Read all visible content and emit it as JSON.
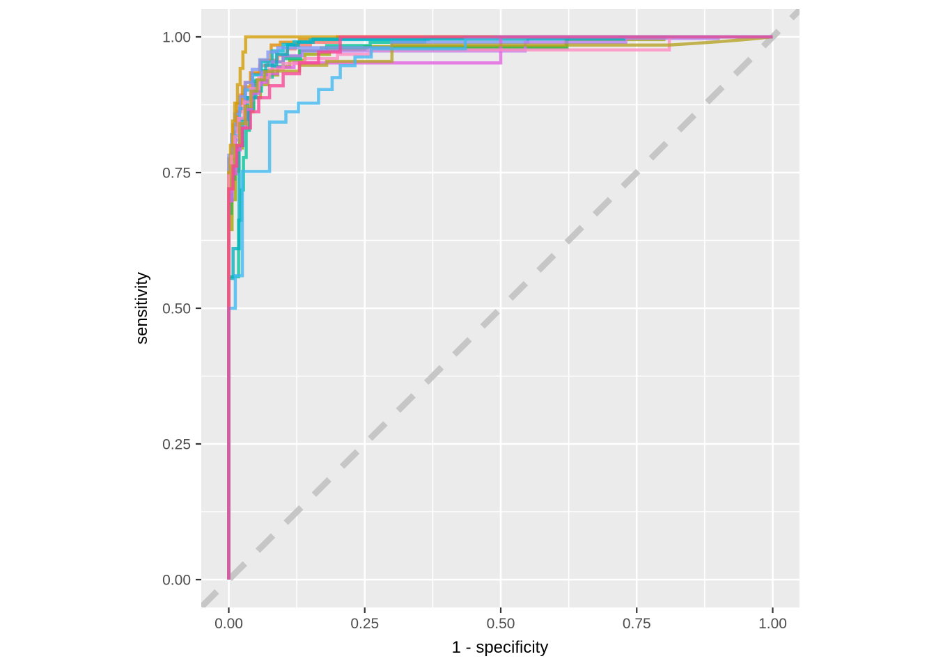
{
  "chart_data": {
    "type": "line",
    "subtype": "roc-step-curves",
    "title": "",
    "xlabel": "1 - specificity",
    "ylabel": "sensitivity",
    "xlim": [
      -0.05,
      1.05
    ],
    "ylim": [
      -0.05,
      1.05
    ],
    "grid": {
      "background": "#EBEBEB",
      "major_color": "#FFFFFF",
      "minor_color": "#FFFFFF"
    },
    "legend_position": "none",
    "x_ticks": {
      "values": [
        0,
        0.25,
        0.5,
        0.75,
        1.0
      ],
      "labels": [
        "0.00",
        "0.25",
        "0.50",
        "0.75",
        "1.00"
      ]
    },
    "y_ticks": {
      "values": [
        0,
        0.25,
        0.5,
        0.75,
        1.0
      ],
      "labels": [
        "0.00",
        "0.25",
        "0.50",
        "0.75",
        "1.00"
      ]
    },
    "x_minor_ticks": [
      0.125,
      0.375,
      0.625,
      0.875
    ],
    "y_minor_ticks": [
      0.125,
      0.375,
      0.625,
      0.875
    ],
    "reference_line": {
      "name": "chance-diagonal",
      "style": "dashed",
      "color": "#C6C6C6",
      "width": 9,
      "dash": [
        31,
        26
      ],
      "from": [
        -0.05,
        -0.05
      ],
      "to": [
        1.05,
        1.05
      ]
    },
    "series": [
      {
        "name": "roc-curve-salmon",
        "color": "#F8766D",
        "points": [
          [
            0,
            0
          ],
          [
            0,
            0.7
          ],
          [
            0.005,
            0.745
          ],
          [
            0.01,
            0.785
          ],
          [
            0.016,
            0.825
          ],
          [
            0.022,
            0.862
          ],
          [
            0.03,
            0.893
          ],
          [
            0.042,
            0.916
          ],
          [
            0.057,
            0.932
          ],
          [
            0.072,
            0.947
          ],
          [
            0.09,
            0.957
          ],
          [
            0.107,
            0.966
          ],
          [
            0.122,
            0.978
          ],
          [
            0.15,
            0.985
          ],
          [
            0.2,
            0.99
          ],
          [
            0.26,
            1
          ],
          [
            1,
            1
          ]
        ]
      },
      {
        "name": "roc-curve-orange",
        "color": "#E08B00",
        "points": [
          [
            0,
            0
          ],
          [
            0,
            0.715
          ],
          [
            0.008,
            0.775
          ],
          [
            0.015,
            0.838
          ],
          [
            0.025,
            0.878
          ],
          [
            0.04,
            0.908
          ],
          [
            0.058,
            0.934
          ],
          [
            0.078,
            0.956
          ],
          [
            0.095,
            0.985
          ],
          [
            0.13,
            0.99
          ],
          [
            0.2,
            0.995
          ],
          [
            0.29,
            1
          ],
          [
            1,
            1
          ]
        ]
      },
      {
        "name": "roc-curve-olive",
        "color": "#9DA700",
        "points": [
          [
            0,
            0
          ],
          [
            0,
            0.58
          ],
          [
            0.006,
            0.645
          ],
          [
            0.012,
            0.7
          ],
          [
            0.018,
            0.752
          ],
          [
            0.025,
            0.795
          ],
          [
            0.034,
            0.832
          ],
          [
            0.045,
            0.862
          ],
          [
            0.058,
            0.888
          ],
          [
            0.072,
            0.912
          ],
          [
            0.09,
            0.93
          ],
          [
            0.112,
            0.945
          ],
          [
            0.14,
            0.957
          ],
          [
            0.185,
            0.968
          ],
          [
            0.25,
            0.977
          ],
          [
            0.45,
            0.982
          ],
          [
            0.62,
            0.982
          ],
          [
            0.62,
            0.995
          ],
          [
            0.8,
            0.995
          ],
          [
            0.8,
            1
          ],
          [
            1,
            1
          ]
        ]
      },
      {
        "name": "roc-curve-green",
        "color": "#2FB84F",
        "points": [
          [
            0,
            0
          ],
          [
            0,
            0.6
          ],
          [
            0.005,
            0.675
          ],
          [
            0.011,
            0.738
          ],
          [
            0.02,
            0.798
          ],
          [
            0.031,
            0.848
          ],
          [
            0.045,
            0.888
          ],
          [
            0.06,
            0.918
          ],
          [
            0.08,
            0.938
          ],
          [
            0.1,
            0.954
          ],
          [
            0.13,
            0.964
          ],
          [
            0.17,
            0.974
          ],
          [
            0.25,
            0.98
          ],
          [
            0.622,
            0.98
          ],
          [
            0.622,
            1
          ],
          [
            1,
            1
          ]
        ]
      },
      {
        "name": "roc-curve-seagreen",
        "color": "#00C29A",
        "points": [
          [
            0,
            0
          ],
          [
            0,
            0.558
          ],
          [
            0.018,
            0.558
          ],
          [
            0.018,
            0.615
          ],
          [
            0.023,
            0.662
          ],
          [
            0.027,
            0.718
          ],
          [
            0.032,
            0.778
          ],
          [
            0.038,
            0.828
          ],
          [
            0.046,
            0.868
          ],
          [
            0.06,
            0.9
          ],
          [
            0.08,
            0.926
          ],
          [
            0.1,
            0.945
          ],
          [
            0.132,
            0.96
          ],
          [
            0.18,
            0.974
          ],
          [
            0.26,
            0.984
          ],
          [
            0.36,
            0.99
          ],
          [
            0.5,
            1
          ],
          [
            1,
            1
          ]
        ]
      },
      {
        "name": "roc-curve-cyan",
        "color": "#00BEE0",
        "points": [
          [
            0,
            0
          ],
          [
            0,
            0.62
          ],
          [
            0.006,
            0.7
          ],
          [
            0.012,
            0.758
          ],
          [
            0.02,
            0.818
          ],
          [
            0.03,
            0.868
          ],
          [
            0.044,
            0.902
          ],
          [
            0.06,
            0.93
          ],
          [
            0.08,
            0.954
          ],
          [
            0.1,
            0.974
          ],
          [
            0.12,
            0.986
          ],
          [
            0.15,
            0.991
          ],
          [
            0.22,
            0.995
          ],
          [
            0.367,
            0.995
          ],
          [
            0.367,
            0.998
          ],
          [
            0.434,
            0.998
          ],
          [
            0.434,
            1
          ],
          [
            1,
            1
          ]
        ]
      },
      {
        "name": "roc-curve-periwinkle",
        "color": "#7F97F5",
        "points": [
          [
            0,
            0
          ],
          [
            0,
            0.74
          ],
          [
            0.005,
            0.782
          ],
          [
            0.011,
            0.82
          ],
          [
            0.02,
            0.858
          ],
          [
            0.031,
            0.89
          ],
          [
            0.043,
            0.916
          ],
          [
            0.057,
            0.94
          ],
          [
            0.072,
            0.958
          ],
          [
            0.09,
            0.972
          ],
          [
            0.12,
            0.98
          ],
          [
            0.3,
            0.98
          ],
          [
            0.3,
            0.99
          ],
          [
            0.55,
            0.99
          ],
          [
            0.55,
            0.998
          ],
          [
            0.73,
            0.998
          ],
          [
            0.73,
            1
          ],
          [
            1,
            1
          ]
        ]
      },
      {
        "name": "roc-curve-purple",
        "color": "#B97CF2",
        "points": [
          [
            0,
            0
          ],
          [
            0,
            0.655
          ],
          [
            0.006,
            0.715
          ],
          [
            0.012,
            0.768
          ],
          [
            0.02,
            0.81
          ],
          [
            0.03,
            0.85
          ],
          [
            0.044,
            0.884
          ],
          [
            0.06,
            0.912
          ],
          [
            0.08,
            0.935
          ],
          [
            0.1,
            0.954
          ],
          [
            0.135,
            0.965
          ],
          [
            0.21,
            0.974
          ],
          [
            0.545,
            0.974
          ],
          [
            0.545,
            0.99
          ],
          [
            0.73,
            0.99
          ],
          [
            0.73,
            0.997
          ],
          [
            0.9,
            0.997
          ],
          [
            0.9,
            1
          ],
          [
            1,
            1
          ]
        ]
      },
      {
        "name": "roc-curve-gold",
        "color": "#D29B00",
        "points": [
          [
            0,
            0
          ],
          [
            0,
            0.69
          ],
          [
            0.003,
            0.75
          ],
          [
            0.007,
            0.8
          ],
          [
            0.011,
            0.845
          ],
          [
            0.016,
            0.878
          ],
          [
            0.021,
            0.912
          ],
          [
            0.026,
            0.942
          ],
          [
            0.031,
            0.972
          ],
          [
            0.04,
            1
          ],
          [
            1,
            1
          ]
        ]
      },
      {
        "name": "roc-curve-teal",
        "color": "#00AFC0",
        "points": [
          [
            0,
            0
          ],
          [
            0,
            0.555
          ],
          [
            0.008,
            0.555
          ],
          [
            0.008,
            0.61
          ],
          [
            0.019,
            0.61
          ],
          [
            0.019,
            0.76
          ],
          [
            0.026,
            0.8
          ],
          [
            0.035,
            0.848
          ],
          [
            0.05,
            0.888
          ],
          [
            0.068,
            0.92
          ],
          [
            0.088,
            0.948
          ],
          [
            0.108,
            0.968
          ],
          [
            0.128,
            0.985
          ],
          [
            0.155,
            0.99
          ],
          [
            0.2,
            0.996
          ],
          [
            0.726,
            0.996
          ],
          [
            0.726,
            1
          ],
          [
            1,
            1
          ]
        ]
      },
      {
        "name": "roc-curve-magenta",
        "color": "#E25FE2",
        "points": [
          [
            0,
            0
          ],
          [
            0,
            0.638
          ],
          [
            0.006,
            0.698
          ],
          [
            0.013,
            0.748
          ],
          [
            0.021,
            0.792
          ],
          [
            0.031,
            0.832
          ],
          [
            0.042,
            0.866
          ],
          [
            0.056,
            0.896
          ],
          [
            0.07,
            0.916
          ],
          [
            0.09,
            0.932
          ],
          [
            0.12,
            0.944
          ],
          [
            0.16,
            0.952
          ],
          [
            0.5,
            0.952
          ],
          [
            0.5,
            1
          ],
          [
            1,
            1
          ]
        ]
      },
      {
        "name": "roc-curve-lightpink",
        "color": "#FF8AC2",
        "points": [
          [
            0,
            0
          ],
          [
            0,
            0.7
          ],
          [
            0.005,
            0.744
          ],
          [
            0.011,
            0.78
          ],
          [
            0.018,
            0.816
          ],
          [
            0.028,
            0.85
          ],
          [
            0.04,
            0.88
          ],
          [
            0.055,
            0.905
          ],
          [
            0.075,
            0.925
          ],
          [
            0.1,
            0.94
          ],
          [
            0.14,
            0.951
          ],
          [
            0.2,
            0.96
          ],
          [
            0.26,
            0.968
          ],
          [
            0.35,
            0.976
          ],
          [
            0.81,
            0.976
          ],
          [
            0.81,
            1
          ],
          [
            1,
            1
          ]
        ]
      },
      {
        "name": "roc-curve-khaki",
        "color": "#B5A222",
        "points": [
          [
            0,
            0
          ],
          [
            0,
            0.675
          ],
          [
            0.005,
            0.72
          ],
          [
            0.011,
            0.762
          ],
          [
            0.02,
            0.8
          ],
          [
            0.03,
            0.84
          ],
          [
            0.041,
            0.872
          ],
          [
            0.052,
            0.9
          ],
          [
            0.066,
            0.921
          ],
          [
            0.082,
            0.936
          ],
          [
            0.13,
            0.937
          ],
          [
            0.18,
            0.948
          ],
          [
            0.3,
            0.955
          ],
          [
            0.3,
            0.975
          ],
          [
            0.355,
            0.985
          ],
          [
            0.81,
            0.985
          ],
          [
            0.855,
            0.988,
            "l"
          ],
          [
            0.9,
            0.991,
            "l"
          ],
          [
            0.95,
            0.995,
            "l"
          ],
          [
            1,
            1,
            "l"
          ]
        ]
      },
      {
        "name": "roc-curve-skyblue",
        "color": "#3FB8F0",
        "points": [
          [
            0,
            0
          ],
          [
            0,
            0.5
          ],
          [
            0.012,
            0.5
          ],
          [
            0.012,
            0.56
          ],
          [
            0.025,
            0.56
          ],
          [
            0.025,
            0.752
          ],
          [
            0.075,
            0.752
          ],
          [
            0.075,
            0.843
          ],
          [
            0.105,
            0.843
          ],
          [
            0.105,
            0.862
          ],
          [
            0.128,
            0.862
          ],
          [
            0.128,
            0.878
          ],
          [
            0.165,
            0.878
          ],
          [
            0.165,
            0.903
          ],
          [
            0.19,
            0.903
          ],
          [
            0.19,
            0.925
          ],
          [
            0.205,
            0.925
          ],
          [
            0.205,
            0.947
          ],
          [
            0.232,
            0.947
          ],
          [
            0.232,
            0.963
          ],
          [
            0.262,
            0.963
          ],
          [
            0.262,
            0.978
          ],
          [
            0.435,
            0.978
          ],
          [
            0.435,
            0.998
          ],
          [
            0.49,
            0.998
          ],
          [
            0.49,
            1
          ],
          [
            1,
            1
          ]
        ]
      },
      {
        "name": "roc-curve-deeppink",
        "color": "#FA4395",
        "points": [
          [
            0,
            0
          ],
          [
            0,
            0.72
          ],
          [
            0.008,
            0.72
          ],
          [
            0.008,
            0.762
          ],
          [
            0.015,
            0.762
          ],
          [
            0.015,
            0.8
          ],
          [
            0.025,
            0.8
          ],
          [
            0.025,
            0.832
          ],
          [
            0.04,
            0.832
          ],
          [
            0.04,
            0.862
          ],
          [
            0.055,
            0.862
          ],
          [
            0.055,
            0.888
          ],
          [
            0.075,
            0.888
          ],
          [
            0.075,
            0.91
          ],
          [
            0.1,
            0.91
          ],
          [
            0.1,
            0.932
          ],
          [
            0.13,
            0.932
          ],
          [
            0.13,
            0.952
          ],
          [
            0.165,
            0.952
          ],
          [
            0.165,
            0.972
          ],
          [
            0.205,
            0.972
          ],
          [
            0.205,
            1
          ],
          [
            1,
            1
          ]
        ]
      }
    ]
  },
  "styles": {
    "curve_opacity": 0.78,
    "curve_width": 4.5,
    "tick_mark_color": "#333333",
    "tick_label_color": "#4D4D4D",
    "axis_title_color": "#000000",
    "panel_background": "#EBEBEB",
    "gridline_color": "#FFFFFF"
  }
}
